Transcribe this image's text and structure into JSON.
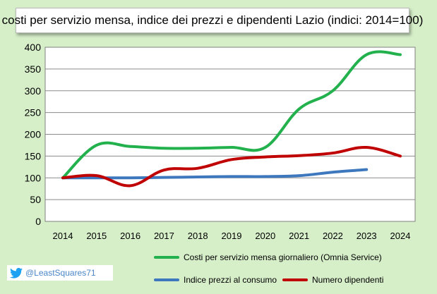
{
  "chart_data": {
    "type": "line",
    "title": "costi per servizio mensa, indice dei prezzi e dipendenti Lazio (indici:  2014=100)",
    "x": [
      "2014",
      "2015",
      "2016",
      "2017",
      "2018",
      "2019",
      "2020",
      "2021",
      "2022",
      "2023",
      "2024"
    ],
    "ylim": [
      0,
      400
    ],
    "yticks": [
      0,
      50,
      100,
      150,
      200,
      250,
      300,
      350,
      400
    ],
    "grid": true,
    "legend_position": "bottom",
    "series": [
      {
        "name": "Costi per servizio mensa giornaliero (Omnia Service)",
        "color": "#22b14c",
        "values": [
          100,
          175,
          172,
          168,
          168,
          170,
          170,
          258,
          300,
          383,
          383
        ]
      },
      {
        "name": "Indice prezzi al consumo",
        "color": "#3d78be",
        "values": [
          100,
          100,
          100,
          101,
          102,
          103,
          103,
          105,
          113,
          119,
          null
        ]
      },
      {
        "name": "Numero dipendenti",
        "color": "#c00000",
        "values": [
          100,
          105,
          82,
          118,
          122,
          142,
          148,
          151,
          157,
          170,
          150
        ]
      }
    ]
  },
  "watermark": {
    "handle": "@LeastSquares71",
    "icon": "twitter-bird-icon"
  }
}
